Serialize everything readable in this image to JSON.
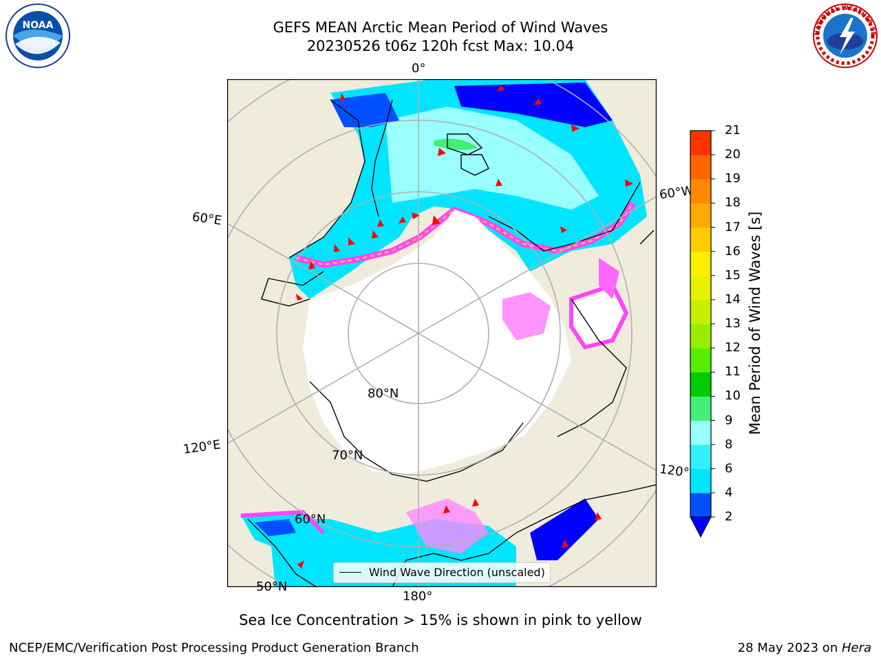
{
  "title": {
    "line1": "GEFS MEAN Arctic Mean Period of Wind Waves",
    "line2": "20230526 t06z 120h fcst   Max: 10.04"
  },
  "map": {
    "meridian_labels": [
      "0°",
      "60°W",
      "120°W",
      "180°",
      "120°E",
      "60°E"
    ],
    "parallel_labels": [
      "80°N",
      "70°N",
      "60°N",
      "50°N"
    ],
    "legend_label": "Wind Wave Direction (unscaled)",
    "colors": {
      "land": "#efecdc",
      "ocean_base": "#00e5ff",
      "ice": "#ffffff",
      "arrows": "#ff0000"
    }
  },
  "colorbar": {
    "label": "Mean Period of Wind Waves [s]",
    "ticks": [
      "2",
      "4",
      "6",
      "8",
      "9",
      "10",
      "11",
      "12",
      "13",
      "14",
      "15",
      "16",
      "17",
      "18",
      "19",
      "20",
      "21"
    ],
    "colors": [
      "#0050ff",
      "#00e5ff",
      "#33f0ff",
      "#99ffff",
      "#44ee77",
      "#00cc00",
      "#55ee00",
      "#99ee00",
      "#c6f000",
      "#e6f000",
      "#ffee00",
      "#ffcc00",
      "#ffaa00",
      "#ff8800",
      "#ff6600",
      "#ff3300",
      "#ff0000"
    ],
    "under_color": "#0000ff"
  },
  "caption": "Sea Ice Concentration > 15% is shown in pink to yellow",
  "footer": {
    "left": "NCEP/EMC/Verification Post Processing Product Generation Branch",
    "date": "28 May 2023 on ",
    "host": "Hera"
  },
  "logos": {
    "noaa_text": "NOAA",
    "nws_text": "NATIONAL WEATHER SERVICE"
  }
}
